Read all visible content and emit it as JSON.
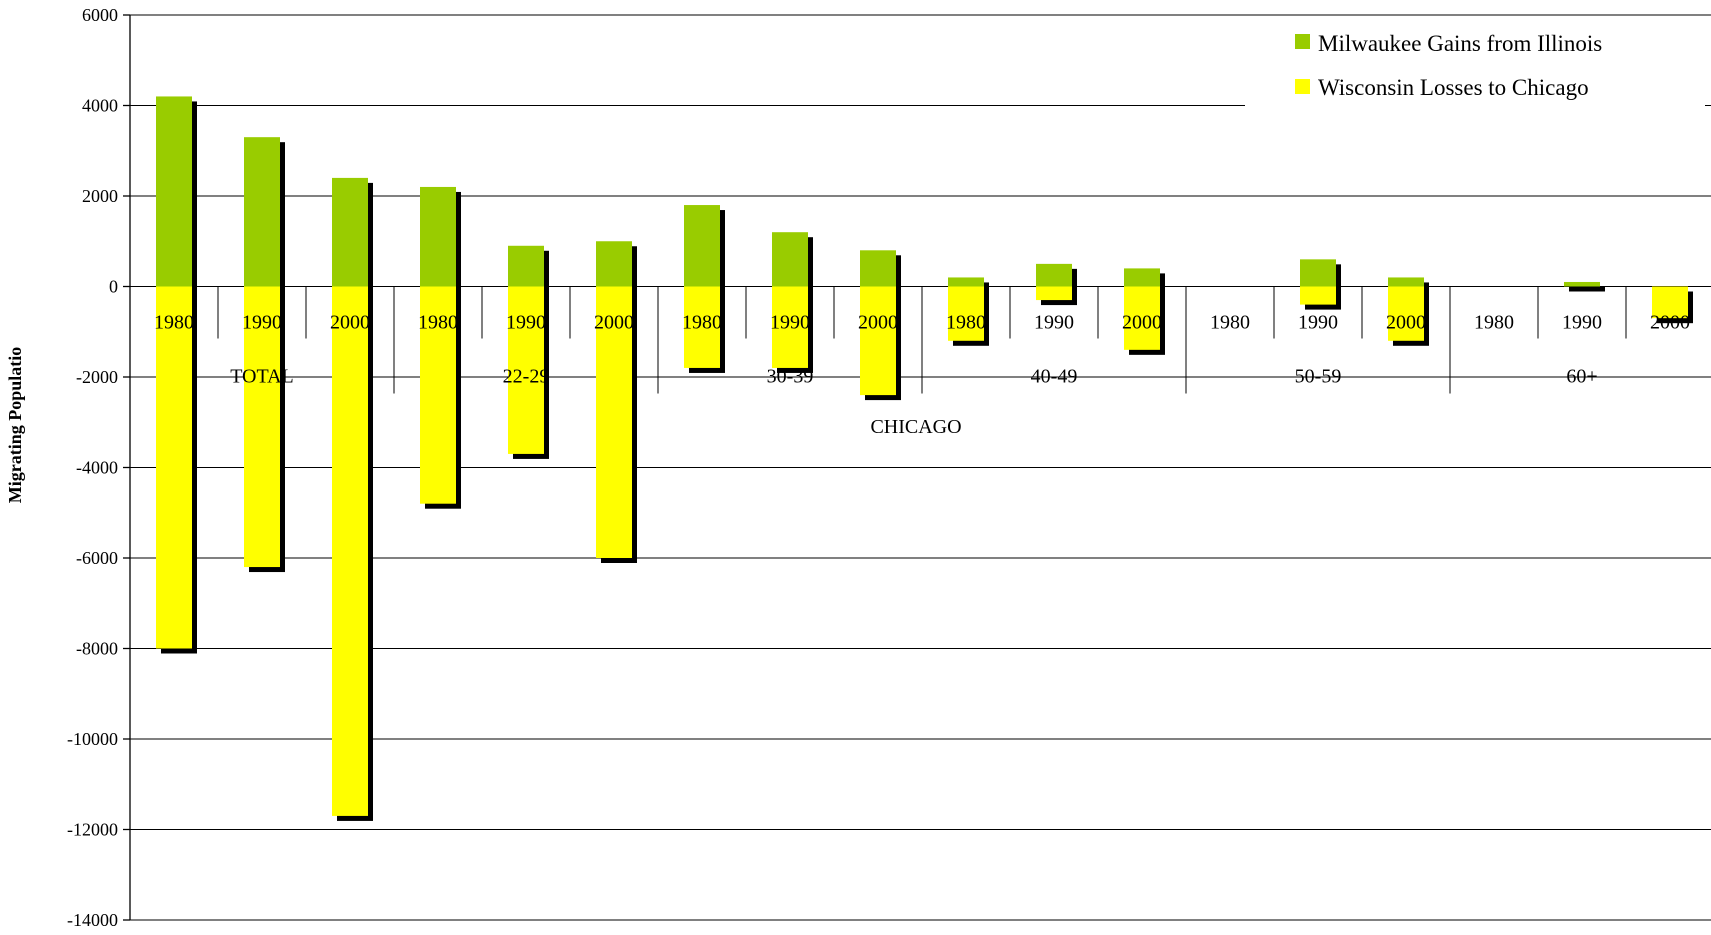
{
  "chart_data": {
    "type": "bar",
    "ylabel": "Migrating Populatio",
    "xlabel": "CHICAGO",
    "ylim": [
      -14000,
      6000
    ],
    "yticks": [
      6000,
      4000,
      2000,
      0,
      -2000,
      -4000,
      -6000,
      -8000,
      -10000,
      -12000,
      -14000
    ],
    "grid": true,
    "legend_position": "top-right",
    "groups": [
      "TOTAL",
      "22-29",
      "30-39",
      "40-49",
      "50-59",
      "60+"
    ],
    "years": [
      "1980",
      "1990",
      "2000"
    ],
    "categories": [
      "1980",
      "1990",
      "2000",
      "1980",
      "1990",
      "2000",
      "1980",
      "1990",
      "2000",
      "1980",
      "1990",
      "2000",
      "1980",
      "1990",
      "2000",
      "1980",
      "1990",
      "2000"
    ],
    "series": [
      {
        "name": "Milwaukee Gains from Illinois",
        "color": "#99cc00",
        "values": [
          4200,
          3300,
          2400,
          2200,
          900,
          1000,
          1800,
          1200,
          800,
          200,
          500,
          400,
          0,
          600,
          200,
          0,
          100,
          0
        ]
      },
      {
        "name": "Wisconsin Losses to Chicago",
        "color": "#ffff00",
        "values": [
          -8000,
          -6200,
          -11700,
          -4800,
          -3700,
          -6000,
          -1800,
          -1800,
          -2400,
          -1200,
          -300,
          -1400,
          0,
          -400,
          -1200,
          0,
          0,
          -700
        ]
      }
    ],
    "shadow_color": "#000000"
  }
}
